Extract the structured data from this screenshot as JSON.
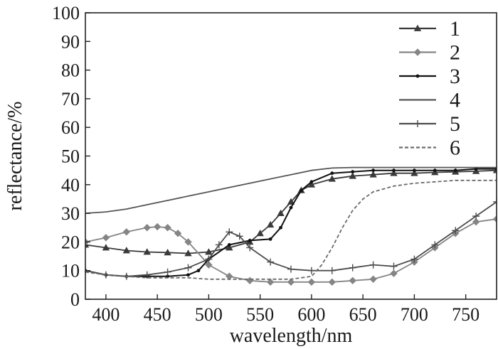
{
  "chart_data": {
    "type": "line",
    "title": "",
    "xlabel": "wavelength/nm",
    "ylabel": "reflectance/%",
    "xlim": [
      380,
      780
    ],
    "ylim": [
      0,
      100
    ],
    "xticks": [
      400,
      450,
      500,
      550,
      600,
      650,
      700,
      750
    ],
    "yticks": [
      0,
      10,
      20,
      30,
      40,
      50,
      60,
      70,
      80,
      90,
      100
    ],
    "grid": false,
    "legend_position": "top-right",
    "series": [
      {
        "name": "1",
        "color": "#3a3a3a",
        "marker": "triangle",
        "x": [
          380,
          400,
          420,
          440,
          460,
          480,
          500,
          520,
          540,
          550,
          560,
          570,
          580,
          590,
          600,
          620,
          640,
          660,
          680,
          700,
          720,
          740,
          760,
          780
        ],
        "y": [
          19,
          18,
          17,
          16.5,
          16.3,
          16,
          16.5,
          18,
          20,
          23,
          26,
          30,
          34,
          38,
          40,
          42,
          43,
          43.5,
          44,
          44,
          44.3,
          44.5,
          44.7,
          45
        ]
      },
      {
        "name": "2",
        "color": "#858585",
        "marker": "diamond",
        "x": [
          380,
          400,
          420,
          440,
          450,
          460,
          470,
          480,
          500,
          520,
          540,
          560,
          580,
          600,
          620,
          640,
          660,
          680,
          700,
          720,
          740,
          760,
          780
        ],
        "y": [
          20,
          21.5,
          23.5,
          25,
          25.3,
          25,
          23,
          20,
          12,
          8,
          6.5,
          6,
          6,
          6,
          6,
          6.5,
          7,
          9,
          13,
          18,
          23,
          27,
          28
        ]
      },
      {
        "name": "3",
        "color": "#111111",
        "marker": "dot",
        "x": [
          380,
          400,
          420,
          440,
          460,
          480,
          490,
          500,
          520,
          540,
          560,
          570,
          580,
          590,
          600,
          620,
          640,
          660,
          680,
          700,
          720,
          740,
          760,
          780
        ],
        "y": [
          10,
          8.5,
          8,
          8,
          8,
          8.5,
          10,
          14,
          19,
          20.5,
          21,
          25,
          32,
          38,
          41,
          44,
          44.5,
          45,
          45,
          45,
          45,
          45,
          45.5,
          45.5
        ]
      },
      {
        "name": "4",
        "color": "#555555",
        "marker": "none",
        "x": [
          380,
          400,
          420,
          440,
          460,
          480,
          500,
          520,
          540,
          560,
          580,
          600,
          620,
          640,
          660,
          680,
          700,
          720,
          740,
          760,
          780
        ],
        "y": [
          30,
          30.5,
          31.5,
          33,
          34.5,
          36,
          37.5,
          39,
          40.5,
          42,
          43.5,
          45,
          45.8,
          46,
          46,
          46,
          46,
          46,
          46,
          46,
          46
        ]
      },
      {
        "name": "5",
        "color": "#4d4d4d",
        "marker": "plus",
        "x": [
          380,
          400,
          420,
          440,
          460,
          480,
          500,
          510,
          520,
          530,
          540,
          560,
          580,
          600,
          620,
          640,
          660,
          680,
          700,
          720,
          740,
          760,
          780
        ],
        "y": [
          10,
          8.5,
          8,
          8.5,
          9.5,
          11,
          14,
          19,
          23.5,
          22,
          18,
          13,
          10.5,
          10,
          10,
          11,
          12,
          11.5,
          14,
          19,
          24,
          29,
          34
        ]
      },
      {
        "name": "6",
        "color": "#6a6a6a",
        "marker": "none",
        "dashed": true,
        "x": [
          380,
          400,
          420,
          440,
          460,
          480,
          500,
          520,
          540,
          560,
          580,
          600,
          610,
          620,
          630,
          640,
          650,
          660,
          680,
          700,
          720,
          740,
          760,
          780
        ],
        "y": [
          9.5,
          8.5,
          8,
          7.5,
          7.5,
          7.5,
          7,
          7,
          7,
          7,
          7,
          8,
          12,
          18,
          25,
          31,
          35,
          37.5,
          39.5,
          40.5,
          41,
          41.5,
          41.5,
          41.5
        ]
      }
    ]
  }
}
